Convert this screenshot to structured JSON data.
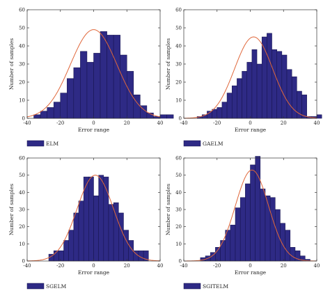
{
  "colors": {
    "bar_fill": "#2e2a85",
    "bar_stroke": "#14124a",
    "curve": "#e0673a",
    "axis": "#333333"
  },
  "chart_data": [
    {
      "type": "bar",
      "title": "",
      "xlabel": "Error range",
      "ylabel": "Number of samples",
      "xlim": [
        -40,
        40
      ],
      "ylim": [
        0,
        60
      ],
      "xticks": [
        "-40",
        "-20",
        "0",
        "20",
        "40"
      ],
      "yticks": [
        "0",
        "10",
        "20",
        "30",
        "40",
        "50",
        "60"
      ],
      "bin_start": -36,
      "bin_width": 4,
      "values": [
        2,
        4,
        6,
        9,
        14,
        22,
        28,
        37,
        31,
        36,
        48,
        46,
        46,
        35,
        26,
        13,
        7,
        3,
        1,
        2,
        2
      ],
      "fit_curve": {
        "mean": 0,
        "std": 14,
        "peak": 49
      },
      "legend": "ELM"
    },
    {
      "type": "bar",
      "title": "",
      "xlabel": "Error range",
      "ylabel": "Number of samples",
      "xlim": [
        -40,
        40
      ],
      "ylim": [
        0,
        60
      ],
      "xticks": [
        "-40",
        "-20",
        "0",
        "20",
        "40"
      ],
      "yticks": [
        "0",
        "10",
        "20",
        "30",
        "40",
        "50",
        "60"
      ],
      "bin_start": -32,
      "bin_width": 3,
      "values": [
        1,
        2,
        4,
        5,
        6,
        9,
        14,
        18,
        22,
        26,
        31,
        38,
        30,
        45,
        47,
        38,
        37,
        35,
        27,
        23,
        15,
        13,
        1,
        1,
        2
      ],
      "fit_curve": {
        "mean": 2,
        "std": 11.5,
        "peak": 45
      },
      "legend": "GAELM"
    },
    {
      "type": "bar",
      "title": "",
      "xlabel": "Error range",
      "ylabel": "Number of samples",
      "xlim": [
        -40,
        40
      ],
      "ylim": [
        0,
        60
      ],
      "xticks": [
        "-40",
        "-20",
        "0",
        "20",
        "40"
      ],
      "yticks": [
        "0",
        "10",
        "20",
        "30",
        "40",
        "50",
        "60"
      ],
      "bin_start": -27,
      "bin_width": 3,
      "values": [
        4,
        6,
        6,
        12,
        18,
        28,
        35,
        49,
        49,
        38,
        50,
        49,
        33,
        34,
        28,
        18,
        12,
        6,
        6,
        6
      ],
      "fit_curve": {
        "mean": 1,
        "std": 11,
        "peak": 50
      },
      "legend": "SGELM"
    },
    {
      "type": "bar",
      "title": "",
      "xlabel": "Error range",
      "ylabel": "Number of samples",
      "xlim": [
        -40,
        40
      ],
      "ylim": [
        0,
        60
      ],
      "xticks": [
        "-40",
        "-20",
        "0",
        "20",
        "40"
      ],
      "yticks": [
        "0",
        "10",
        "20",
        "30",
        "40",
        "50",
        "60"
      ],
      "bin_start": -30,
      "bin_width": 3,
      "values": [
        2,
        3,
        5,
        8,
        12,
        18,
        21,
        31,
        37,
        45,
        56,
        61,
        42,
        38,
        37,
        30,
        22,
        18,
        8,
        6,
        3,
        1
      ],
      "fit_curve": {
        "mean": 1,
        "std": 10,
        "peak": 53
      },
      "legend": "SGITELM"
    }
  ]
}
